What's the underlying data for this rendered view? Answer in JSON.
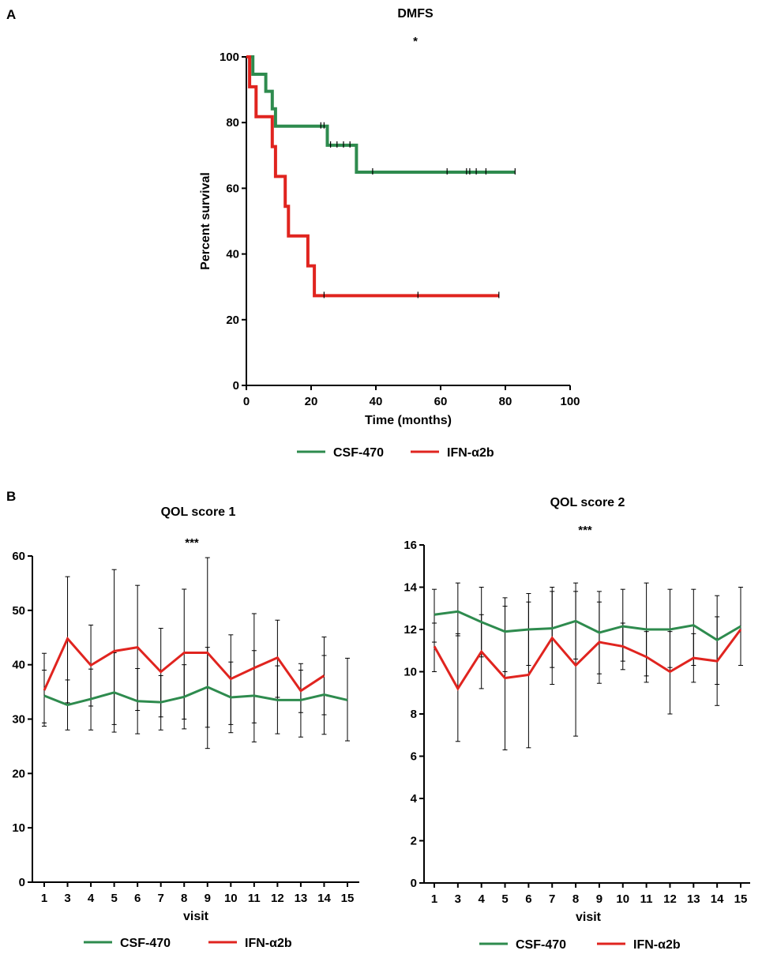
{
  "panels": {
    "a": "A",
    "b": "B"
  },
  "colors": {
    "csf": "#2e8b4e",
    "ifn": "#e0241f"
  },
  "chart_data": [
    {
      "type": "line",
      "subtype": "kaplan-meier",
      "title": "DMFS",
      "annotation": "*",
      "xlabel": "Time (months)",
      "ylabel": "Percent survival",
      "xlim": [
        0,
        100
      ],
      "ylim": [
        0,
        100
      ],
      "xticks": [
        "0",
        "20",
        "40",
        "60",
        "80",
        "100"
      ],
      "yticks": [
        "0",
        "20",
        "40",
        "60",
        "80",
        "100"
      ],
      "legend": [
        "CSF-470",
        "IFN-α2b"
      ],
      "series": [
        {
          "name": "CSF-470",
          "step_times": [
            0,
            2,
            6,
            8,
            9,
            11,
            25,
            34,
            83
          ],
          "survival": [
            100,
            94.7,
            89.5,
            84.2,
            78.9,
            78.9,
            73.1,
            64.9,
            64.9
          ],
          "censor_times": [
            23,
            24,
            26,
            28,
            30,
            32,
            39,
            62,
            68,
            69,
            71,
            74,
            83
          ],
          "censor_values": [
            78.9,
            78.9,
            73.1,
            73.1,
            73.1,
            73.1,
            64.9,
            64.9,
            64.9,
            64.9,
            64.9,
            64.9,
            64.9
          ]
        },
        {
          "name": "IFN-α2b",
          "step_times": [
            0,
            1,
            3,
            8,
            9,
            12,
            13,
            19,
            21,
            78
          ],
          "survival": [
            100,
            90.9,
            81.8,
            72.7,
            63.6,
            54.5,
            45.5,
            36.4,
            27.3,
            27.3
          ],
          "censor_times": [
            24,
            53,
            78
          ],
          "censor_values": [
            27.3,
            27.3,
            27.3
          ]
        }
      ]
    },
    {
      "type": "line",
      "title": "QOL  score 1",
      "annotation": "***",
      "xlabel": "visit",
      "ylabel": "",
      "categories": [
        "1",
        "3",
        "4",
        "5",
        "6",
        "7",
        "8",
        "9",
        "10",
        "11",
        "12",
        "13",
        "14",
        "15"
      ],
      "ylim": [
        0,
        60
      ],
      "yticks": [
        "0",
        "10",
        "20",
        "30",
        "40",
        "50",
        "60"
      ],
      "legend": [
        "CSF-470",
        "IFN-α2b"
      ],
      "series": [
        {
          "name": "CSF-470",
          "values": [
            34.3,
            32.6,
            33.7,
            34.9,
            33.3,
            33.1,
            34.1,
            35.9,
            34.0,
            34.3,
            33.5,
            33.5,
            34.5,
            33.5
          ],
          "err_low": [
            29.3,
            28.0,
            28.0,
            27.6,
            27.3,
            28.0,
            28.2,
            28.5,
            27.5,
            25.8,
            27.3,
            26.7,
            27.2,
            26.0
          ],
          "err_high": [
            39.0,
            37.2,
            39.2,
            42.2,
            39.3,
            38.0,
            40.0,
            43.2,
            40.5,
            42.6,
            39.8,
            39.0,
            41.7,
            41.2
          ]
        },
        {
          "name": "IFN-α2b",
          "values": [
            35.3,
            44.8,
            39.9,
            42.5,
            43.2,
            38.7,
            42.2,
            42.2,
            37.4,
            39.4,
            41.3,
            35.2,
            38.0,
            null
          ],
          "err_low": [
            28.7,
            33.0,
            32.4,
            29.0,
            31.6,
            30.4,
            30.0,
            24.6,
            29.0,
            29.3,
            34.0,
            31.2,
            30.8,
            null
          ],
          "err_high": [
            42.1,
            56.2,
            47.3,
            57.5,
            54.6,
            46.7,
            53.9,
            59.7,
            45.5,
            49.4,
            48.2,
            40.2,
            45.1,
            null
          ]
        }
      ]
    },
    {
      "type": "line",
      "title": "QOL score 2",
      "annotation": "***",
      "xlabel": "visit",
      "ylabel": "",
      "categories": [
        "1",
        "3",
        "4",
        "5",
        "6",
        "7",
        "8",
        "9",
        "10",
        "11",
        "12",
        "13",
        "14",
        "15"
      ],
      "ylim": [
        0,
        16
      ],
      "yticks": [
        "0",
        "2",
        "4",
        "6",
        "8",
        "10",
        "12",
        "14",
        "16"
      ],
      "legend": [
        "CSF-470",
        "IFN-α2b"
      ],
      "series": [
        {
          "name": "CSF-470",
          "values": [
            12.7,
            12.85,
            12.35,
            11.9,
            12.0,
            12.05,
            12.4,
            11.85,
            12.15,
            12.0,
            12.0,
            12.2,
            11.5,
            12.15
          ],
          "err_low": [
            11.4,
            11.7,
            10.7,
            10.0,
            10.3,
            10.2,
            10.6,
            9.9,
            10.5,
            9.8,
            10.2,
            10.3,
            9.4,
            10.3
          ],
          "err_high": [
            13.9,
            14.2,
            14.0,
            13.5,
            13.7,
            14.0,
            14.2,
            13.8,
            13.9,
            14.2,
            13.9,
            13.9,
            13.6,
            14.0
          ]
        },
        {
          "name": "IFN-α2b",
          "values": [
            11.2,
            9.2,
            10.95,
            9.7,
            9.85,
            11.6,
            10.3,
            11.4,
            11.2,
            10.7,
            10.0,
            10.65,
            10.5,
            12.0
          ],
          "err_low": [
            10.0,
            6.7,
            9.2,
            6.3,
            6.4,
            9.4,
            6.95,
            9.45,
            10.1,
            9.5,
            8.0,
            9.5,
            8.4,
            null
          ],
          "err_high": [
            12.3,
            11.8,
            12.7,
            13.1,
            13.3,
            13.8,
            13.8,
            13.3,
            12.3,
            11.9,
            11.9,
            11.8,
            12.6,
            null
          ]
        }
      ]
    }
  ]
}
